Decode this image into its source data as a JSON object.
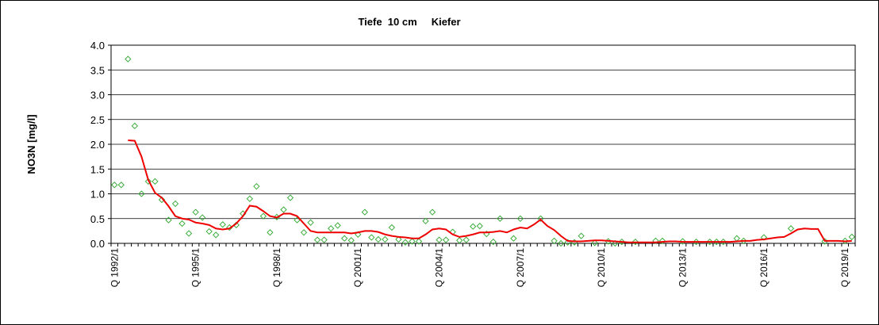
{
  "chart_data": {
    "type": "line",
    "title": "Tiefe  10 cm     Kiefer",
    "y_label": "NO3N [mg/l]",
    "categories": [
      "Q 1992/1",
      null,
      null,
      null,
      null,
      null,
      null,
      null,
      null,
      null,
      null,
      null,
      "Q 1995/1",
      null,
      null,
      null,
      null,
      null,
      null,
      null,
      null,
      null,
      null,
      null,
      "Q 1998/1",
      null,
      null,
      null,
      null,
      null,
      null,
      null,
      null,
      null,
      null,
      null,
      "Q 2001/1",
      null,
      null,
      null,
      null,
      null,
      null,
      null,
      null,
      null,
      null,
      null,
      "Q 2004/1",
      null,
      null,
      null,
      null,
      null,
      null,
      null,
      null,
      null,
      null,
      null,
      "Q 2007/1",
      null,
      null,
      null,
      null,
      null,
      null,
      null,
      null,
      null,
      null,
      null,
      "Q 2010/1",
      null,
      null,
      null,
      null,
      null,
      null,
      null,
      null,
      null,
      null,
      null,
      "Q 2013/1",
      null,
      null,
      null,
      null,
      null,
      null,
      null,
      null,
      null,
      null,
      null,
      "Q 2016/1",
      null,
      null,
      null,
      null,
      null,
      null,
      null,
      null,
      null,
      null,
      null,
      "Q 2019/1",
      null
    ],
    "series": [
      {
        "color": "#33aa33",
        "style": "marker",
        "values": [
          1.18,
          1.18,
          3.72,
          2.37,
          1.0,
          1.25,
          1.25,
          0.88,
          0.47,
          0.8,
          0.4,
          0.2,
          0.63,
          0.52,
          0.24,
          0.17,
          0.38,
          0.32,
          0.37,
          0.6,
          0.9,
          1.15,
          0.55,
          0.22,
          0.53,
          0.68,
          0.92,
          0.47,
          0.22,
          0.42,
          0.07,
          0.07,
          0.3,
          0.36,
          0.1,
          0.06,
          0.18,
          0.63,
          0.12,
          0.08,
          0.08,
          0.32,
          0.08,
          0.02,
          0.04,
          0.04,
          0.45,
          0.63,
          0.07,
          0.07,
          0.23,
          0.06,
          0.07,
          0.34,
          0.35,
          0.19,
          0.03,
          0.5,
          null,
          0.1,
          0.5,
          null,
          null,
          0.5,
          null,
          0.05,
          0.0,
          0.02,
          0.02,
          0.15,
          null,
          0.01,
          null,
          0.04,
          0.0,
          0.03,
          null,
          0.03,
          null,
          null,
          0.05,
          0.05,
          null,
          null,
          0.04,
          null,
          0.03,
          null,
          0.03,
          0.03,
          0.03,
          null,
          0.1,
          0.05,
          null,
          null,
          0.12,
          null,
          null,
          null,
          0.3,
          null,
          null,
          null,
          null,
          0.04,
          null,
          null,
          0.05,
          0.13
        ]
      },
      {
        "color": "#ee0000",
        "style": "line",
        "values": [
          null,
          null,
          2.08,
          2.07,
          1.75,
          1.28,
          1.02,
          0.92,
          0.75,
          0.55,
          0.5,
          0.48,
          0.42,
          0.4,
          0.37,
          0.3,
          0.28,
          0.3,
          0.4,
          0.55,
          0.76,
          0.74,
          0.65,
          0.55,
          0.52,
          0.6,
          0.6,
          0.55,
          0.4,
          0.25,
          0.22,
          0.22,
          0.22,
          0.22,
          0.22,
          0.2,
          0.22,
          0.25,
          0.25,
          0.23,
          0.18,
          0.15,
          0.13,
          0.12,
          0.1,
          0.1,
          0.18,
          0.28,
          0.3,
          0.28,
          0.18,
          0.13,
          0.15,
          0.18,
          0.22,
          0.22,
          0.23,
          0.25,
          0.22,
          0.28,
          0.32,
          0.3,
          0.38,
          0.48,
          0.35,
          0.27,
          0.15,
          0.05,
          0.04,
          0.04,
          0.05,
          0.06,
          0.06,
          0.05,
          0.04,
          0.03,
          0.02,
          0.02,
          0.02,
          0.02,
          0.02,
          0.03,
          0.04,
          0.04,
          0.03,
          0.03,
          0.03,
          0.03,
          0.03,
          0.03,
          0.03,
          0.03,
          0.04,
          0.05,
          0.05,
          0.07,
          0.08,
          0.1,
          0.12,
          0.13,
          0.2,
          0.28,
          0.3,
          0.29,
          0.29,
          0.05,
          0.05,
          0.05,
          0.04,
          0.05
        ]
      }
    ],
    "ylim": [
      0,
      4
    ],
    "yticks": [
      {
        "value": 0,
        "label": "0.0"
      },
      {
        "value": 0.5,
        "label": "0.5"
      },
      {
        "value": 1,
        "label": "1.0"
      },
      {
        "value": 1.5,
        "label": "1.5"
      },
      {
        "value": 2,
        "label": "2.0"
      },
      {
        "value": 2.5,
        "label": "2.5"
      },
      {
        "value": 3,
        "label": "3.0"
      },
      {
        "value": 3.5,
        "label": "3.5"
      },
      {
        "value": 4,
        "label": "4.0"
      }
    ],
    "grid": true
  }
}
